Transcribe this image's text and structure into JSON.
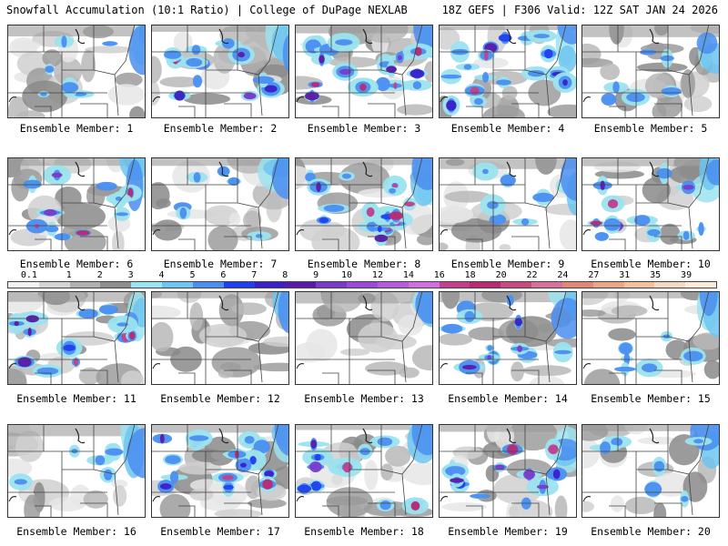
{
  "header": {
    "title_left": "Snowfall Accumulation (10:1 Ratio) | College of DuPage NEXLAB",
    "title_right": "18Z GEFS | F306 Valid: 12Z SAT JAN 24 2026"
  },
  "colorbar": {
    "labels": [
      "0.1",
      "1",
      "2",
      "3",
      "4",
      "5",
      "6",
      "7",
      "8",
      "9",
      "10",
      "12",
      "14",
      "16",
      "18",
      "20",
      "22",
      "24",
      "27",
      "31",
      "35",
      "39"
    ],
    "colors": [
      "#f2f2f2",
      "#d4d4d4",
      "#b0b0b0",
      "#8e8e8e",
      "#9be3ee",
      "#6fc4f0",
      "#4a8ef0",
      "#2040f0",
      "#3a20c8",
      "#5a1aa8",
      "#7a3ac8",
      "#9a4ad8",
      "#b65ae0",
      "#d070e0",
      "#c2408e",
      "#b82a72",
      "#c84a82",
      "#d8709c",
      "#e08878",
      "#e8a888",
      "#f0c2a0",
      "#f6d8c0",
      "#faeadc"
    ]
  },
  "members": [
    {
      "label": "Ensemble Member: 1",
      "intensity": 1
    },
    {
      "label": "Ensemble Member: 2",
      "intensity": 2
    },
    {
      "label": "Ensemble Member: 3",
      "intensity": 3
    },
    {
      "label": "Ensemble Member: 4",
      "intensity": 3
    },
    {
      "label": "Ensemble Member: 5",
      "intensity": 1
    },
    {
      "label": "Ensemble Member: 6",
      "intensity": 2
    },
    {
      "label": "Ensemble Member: 7",
      "intensity": 1
    },
    {
      "label": "Ensemble Member: 8",
      "intensity": 3
    },
    {
      "label": "Ensemble Member: 9",
      "intensity": 1
    },
    {
      "label": "Ensemble Member: 10",
      "intensity": 2
    },
    {
      "label": "Ensemble Member: 11",
      "intensity": 2
    },
    {
      "label": "Ensemble Member: 12",
      "intensity": 0
    },
    {
      "label": "Ensemble Member: 13",
      "intensity": 0
    },
    {
      "label": "Ensemble Member: 14",
      "intensity": 2
    },
    {
      "label": "Ensemble Member: 15",
      "intensity": 1
    },
    {
      "label": "Ensemble Member: 16",
      "intensity": 1
    },
    {
      "label": "Ensemble Member: 17",
      "intensity": 3
    },
    {
      "label": "Ensemble Member: 18",
      "intensity": 2
    },
    {
      "label": "Ensemble Member: 19",
      "intensity": 2
    },
    {
      "label": "Ensemble Member: 20",
      "intensity": 1
    }
  ]
}
